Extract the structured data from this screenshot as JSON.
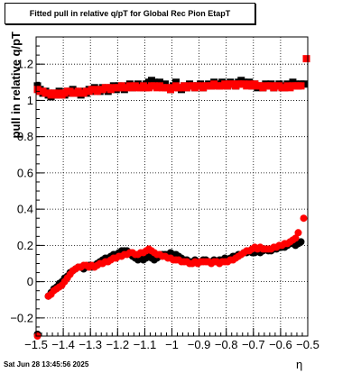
{
  "chart_data": {
    "type": "scatter",
    "title": "Fitted pull in relative q/pT for Global Rec Pion EtapT",
    "xlabel": "η",
    "ylabel": "pull in relative q/pT",
    "xlim": [
      -1.5,
      -0.5
    ],
    "ylim": [
      -0.3,
      1.35
    ],
    "x_ticks": [
      -1.5,
      -1.4,
      -1.3,
      -1.2,
      -1.1,
      -1,
      -0.9,
      -0.8,
      -0.7,
      -0.6,
      -0.5
    ],
    "x_tick_labels": [
      "−1.5",
      "−1.4",
      "−1.3",
      "−1.2",
      "−1.1",
      "−1",
      "−0.9",
      "−0.8",
      "−0.7",
      "−0.6",
      "−0.5"
    ],
    "y_ticks": [
      -0.2,
      0,
      0.2,
      0.4,
      0.6,
      0.8,
      1,
      1.2
    ],
    "y_tick_labels": [
      "−0.2",
      "0",
      "0.2",
      "0.4",
      "0.6",
      "0.8",
      "1",
      "1.2"
    ],
    "grid": true,
    "colors": {
      "black_series": "#000000",
      "red_series": "#ff0000"
    },
    "series": [
      {
        "marker": "square",
        "color": "#000000",
        "x": [
          -1.495,
          -1.485,
          -1.475,
          -1.465,
          -1.455,
          -1.445,
          -1.435,
          -1.425,
          -1.415,
          -1.405,
          -1.395,
          -1.385,
          -1.375,
          -1.365,
          -1.355,
          -1.345,
          -1.335,
          -1.325,
          -1.315,
          -1.305,
          -1.295,
          -1.285,
          -1.275,
          -1.265,
          -1.255,
          -1.245,
          -1.235,
          -1.225,
          -1.215,
          -1.205,
          -1.195,
          -1.185,
          -1.175,
          -1.165,
          -1.155,
          -1.145,
          -1.135,
          -1.125,
          -1.115,
          -1.105,
          -1.095,
          -1.085,
          -1.075,
          -1.065,
          -1.055,
          -1.045,
          -1.035,
          -1.025,
          -1.015,
          -1.005,
          -0.995,
          -0.985,
          -0.975,
          -0.965,
          -0.955,
          -0.945,
          -0.935,
          -0.925,
          -0.915,
          -0.905,
          -0.895,
          -0.885,
          -0.875,
          -0.865,
          -0.855,
          -0.845,
          -0.835,
          -0.825,
          -0.815,
          -0.805,
          -0.795,
          -0.785,
          -0.775,
          -0.765,
          -0.755,
          -0.745,
          -0.735,
          -0.725,
          -0.715,
          -0.705,
          -0.695,
          -0.685,
          -0.675,
          -0.665,
          -0.655,
          -0.645,
          -0.635,
          -0.625,
          -0.615,
          -0.605,
          -0.595,
          -0.585,
          -0.575,
          -0.565,
          -0.555,
          -0.545,
          -0.535,
          -0.525,
          -0.515
        ],
        "y": [
          1.08,
          1.06,
          1.04,
          1.05,
          1.03,
          1.02,
          1.04,
          1.03,
          1.05,
          1.04,
          1.03,
          1.05,
          1.04,
          1.06,
          1.05,
          1.04,
          1.03,
          1.05,
          1.04,
          1.06,
          1.05,
          1.07,
          1.06,
          1.05,
          1.07,
          1.06,
          1.05,
          1.07,
          1.08,
          1.06,
          1.08,
          1.07,
          1.06,
          1.08,
          1.09,
          1.07,
          1.08,
          1.09,
          1.08,
          1.07,
          1.09,
          1.1,
          1.11,
          1.1,
          1.09,
          1.1,
          1.08,
          1.09,
          1.07,
          1.06,
          1.08,
          1.1,
          1.07,
          1.06,
          1.08,
          1.07,
          1.09,
          1.08,
          1.07,
          1.08,
          1.09,
          1.07,
          1.08,
          1.09,
          1.08,
          1.1,
          1.09,
          1.08,
          1.1,
          1.09,
          1.08,
          1.1,
          1.09,
          1.08,
          1.1,
          1.11,
          1.1,
          1.09,
          1.1,
          1.08,
          1.09,
          1.07,
          1.08,
          1.07,
          1.09,
          1.08,
          1.09,
          1.07,
          1.08,
          1.09,
          1.08,
          1.07,
          1.09,
          1.08,
          1.1,
          1.09,
          1.08,
          1.09,
          1.09
        ]
      },
      {
        "marker": "square",
        "color": "#ff0000",
        "x": [
          -1.495,
          -1.485,
          -1.475,
          -1.465,
          -1.455,
          -1.445,
          -1.435,
          -1.425,
          -1.415,
          -1.405,
          -1.395,
          -1.385,
          -1.375,
          -1.365,
          -1.355,
          -1.345,
          -1.335,
          -1.325,
          -1.315,
          -1.305,
          -1.295,
          -1.285,
          -1.275,
          -1.265,
          -1.255,
          -1.245,
          -1.235,
          -1.225,
          -1.215,
          -1.205,
          -1.195,
          -1.185,
          -1.175,
          -1.165,
          -1.155,
          -1.145,
          -1.135,
          -1.125,
          -1.115,
          -1.105,
          -1.095,
          -1.085,
          -1.075,
          -1.065,
          -1.055,
          -1.045,
          -1.035,
          -1.025,
          -1.015,
          -1.005,
          -0.995,
          -0.985,
          -0.975,
          -0.965,
          -0.955,
          -0.945,
          -0.935,
          -0.925,
          -0.915,
          -0.905,
          -0.895,
          -0.885,
          -0.875,
          -0.865,
          -0.855,
          -0.845,
          -0.835,
          -0.825,
          -0.815,
          -0.805,
          -0.795,
          -0.785,
          -0.775,
          -0.765,
          -0.755,
          -0.745,
          -0.735,
          -0.725,
          -0.715,
          -0.705,
          -0.695,
          -0.685,
          -0.675,
          -0.665,
          -0.655,
          -0.645,
          -0.635,
          -0.625,
          -0.615,
          -0.605,
          -0.595,
          -0.585,
          -0.575,
          -0.565,
          -0.555,
          -0.545,
          -0.535,
          -0.525,
          -0.505
        ],
        "y": [
          1.06,
          1.05,
          1.05,
          1.04,
          1.04,
          1.03,
          1.04,
          1.03,
          1.04,
          1.03,
          1.04,
          1.05,
          1.05,
          1.04,
          1.04,
          1.05,
          1.04,
          1.04,
          1.05,
          1.05,
          1.06,
          1.06,
          1.05,
          1.06,
          1.06,
          1.07,
          1.07,
          1.06,
          1.07,
          1.07,
          1.07,
          1.08,
          1.07,
          1.07,
          1.08,
          1.07,
          1.08,
          1.07,
          1.07,
          1.08,
          1.07,
          1.07,
          1.08,
          1.08,
          1.07,
          1.08,
          1.07,
          1.07,
          1.07,
          1.06,
          1.07,
          1.08,
          1.07,
          1.07,
          1.08,
          1.07,
          1.08,
          1.08,
          1.07,
          1.08,
          1.08,
          1.07,
          1.08,
          1.08,
          1.08,
          1.09,
          1.08,
          1.08,
          1.08,
          1.09,
          1.08,
          1.09,
          1.09,
          1.08,
          1.09,
          1.09,
          1.09,
          1.08,
          1.09,
          1.08,
          1.09,
          1.08,
          1.08,
          1.07,
          1.08,
          1.08,
          1.08,
          1.07,
          1.08,
          1.08,
          1.07,
          1.07,
          1.08,
          1.07,
          1.08,
          1.08,
          1.08,
          1.08,
          1.23
        ]
      },
      {
        "marker": "circle",
        "color": "#000000",
        "x": [
          -1.495,
          -1.455,
          -1.445,
          -1.435,
          -1.425,
          -1.415,
          -1.405,
          -1.395,
          -1.385,
          -1.375,
          -1.365,
          -1.355,
          -1.345,
          -1.335,
          -1.325,
          -1.315,
          -1.305,
          -1.295,
          -1.285,
          -1.275,
          -1.265,
          -1.255,
          -1.245,
          -1.235,
          -1.225,
          -1.215,
          -1.205,
          -1.195,
          -1.185,
          -1.175,
          -1.165,
          -1.155,
          -1.145,
          -1.135,
          -1.125,
          -1.115,
          -1.105,
          -1.095,
          -1.085,
          -1.075,
          -1.065,
          -1.055,
          -1.045,
          -1.035,
          -1.025,
          -1.015,
          -1.005,
          -0.995,
          -0.985,
          -0.975,
          -0.965,
          -0.955,
          -0.945,
          -0.935,
          -0.925,
          -0.915,
          -0.905,
          -0.895,
          -0.885,
          -0.875,
          -0.865,
          -0.855,
          -0.845,
          -0.835,
          -0.825,
          -0.815,
          -0.805,
          -0.795,
          -0.785,
          -0.775,
          -0.765,
          -0.755,
          -0.745,
          -0.735,
          -0.725,
          -0.715,
          -0.705,
          -0.695,
          -0.685,
          -0.675,
          -0.665,
          -0.655,
          -0.645,
          -0.635,
          -0.625,
          -0.615,
          -0.605,
          -0.595,
          -0.585,
          -0.575,
          -0.565,
          -0.555,
          -0.545,
          -0.535,
          -0.525
        ],
        "y": [
          -0.29,
          -0.08,
          -0.06,
          -0.04,
          -0.03,
          -0.01,
          0.0,
          0.02,
          0.03,
          0.05,
          0.06,
          0.07,
          0.08,
          0.08,
          0.07,
          0.08,
          0.09,
          0.08,
          0.09,
          0.1,
          0.11,
          0.12,
          0.13,
          0.13,
          0.14,
          0.15,
          0.15,
          0.16,
          0.17,
          0.17,
          0.17,
          0.16,
          0.14,
          0.13,
          0.12,
          0.13,
          0.12,
          0.13,
          0.14,
          0.13,
          0.12,
          0.13,
          0.14,
          0.15,
          0.15,
          0.15,
          0.16,
          0.15,
          0.15,
          0.14,
          0.13,
          0.12,
          0.12,
          0.11,
          0.11,
          0.12,
          0.11,
          0.11,
          0.12,
          0.12,
          0.11,
          0.11,
          0.12,
          0.11,
          0.12,
          0.12,
          0.13,
          0.12,
          0.13,
          0.14,
          0.14,
          0.15,
          0.15,
          0.16,
          0.16,
          0.17,
          0.16,
          0.16,
          0.17,
          0.16,
          0.17,
          0.18,
          0.17,
          0.17,
          0.18,
          0.18,
          0.19,
          0.19,
          0.19,
          0.2,
          0.21,
          0.21,
          0.2,
          0.21,
          0.22
        ]
      },
      {
        "marker": "circle",
        "color": "#ff0000",
        "x": [
          -1.495,
          -1.455,
          -1.445,
          -1.435,
          -1.425,
          -1.415,
          -1.405,
          -1.395,
          -1.385,
          -1.375,
          -1.365,
          -1.355,
          -1.345,
          -1.335,
          -1.325,
          -1.315,
          -1.305,
          -1.295,
          -1.285,
          -1.275,
          -1.265,
          -1.255,
          -1.245,
          -1.235,
          -1.225,
          -1.215,
          -1.205,
          -1.195,
          -1.185,
          -1.175,
          -1.165,
          -1.155,
          -1.145,
          -1.135,
          -1.125,
          -1.115,
          -1.105,
          -1.095,
          -1.085,
          -1.075,
          -1.065,
          -1.055,
          -1.045,
          -1.035,
          -1.025,
          -1.015,
          -1.005,
          -0.995,
          -0.985,
          -0.975,
          -0.965,
          -0.955,
          -0.945,
          -0.935,
          -0.925,
          -0.915,
          -0.905,
          -0.895,
          -0.885,
          -0.875,
          -0.865,
          -0.855,
          -0.845,
          -0.835,
          -0.825,
          -0.815,
          -0.805,
          -0.795,
          -0.785,
          -0.775,
          -0.765,
          -0.755,
          -0.745,
          -0.735,
          -0.725,
          -0.715,
          -0.705,
          -0.695,
          -0.685,
          -0.675,
          -0.665,
          -0.655,
          -0.645,
          -0.635,
          -0.625,
          -0.615,
          -0.605,
          -0.595,
          -0.585,
          -0.575,
          -0.565,
          -0.555,
          -0.545,
          -0.535,
          -0.515
        ],
        "y": [
          -0.3,
          -0.08,
          -0.07,
          -0.05,
          -0.04,
          -0.03,
          -0.02,
          0.0,
          0.02,
          0.04,
          0.06,
          0.07,
          0.08,
          0.08,
          0.09,
          0.09,
          0.08,
          0.09,
          0.08,
          0.09,
          0.1,
          0.1,
          0.11,
          0.11,
          0.12,
          0.13,
          0.13,
          0.14,
          0.14,
          0.15,
          0.15,
          0.16,
          0.16,
          0.15,
          0.15,
          0.16,
          0.16,
          0.17,
          0.18,
          0.17,
          0.16,
          0.15,
          0.15,
          0.14,
          0.14,
          0.13,
          0.13,
          0.12,
          0.12,
          0.12,
          0.11,
          0.11,
          0.11,
          0.1,
          0.1,
          0.11,
          0.1,
          0.11,
          0.11,
          0.11,
          0.11,
          0.1,
          0.11,
          0.11,
          0.1,
          0.11,
          0.11,
          0.11,
          0.12,
          0.12,
          0.13,
          0.14,
          0.15,
          0.16,
          0.17,
          0.17,
          0.18,
          0.19,
          0.18,
          0.19,
          0.18,
          0.18,
          0.18,
          0.18,
          0.19,
          0.19,
          0.2,
          0.2,
          0.21,
          0.21,
          0.22,
          0.23,
          0.24,
          0.27,
          0.35
        ]
      }
    ]
  },
  "footer": {
    "timestamp": "Sat Jun 28 13:45:56 2025"
  }
}
